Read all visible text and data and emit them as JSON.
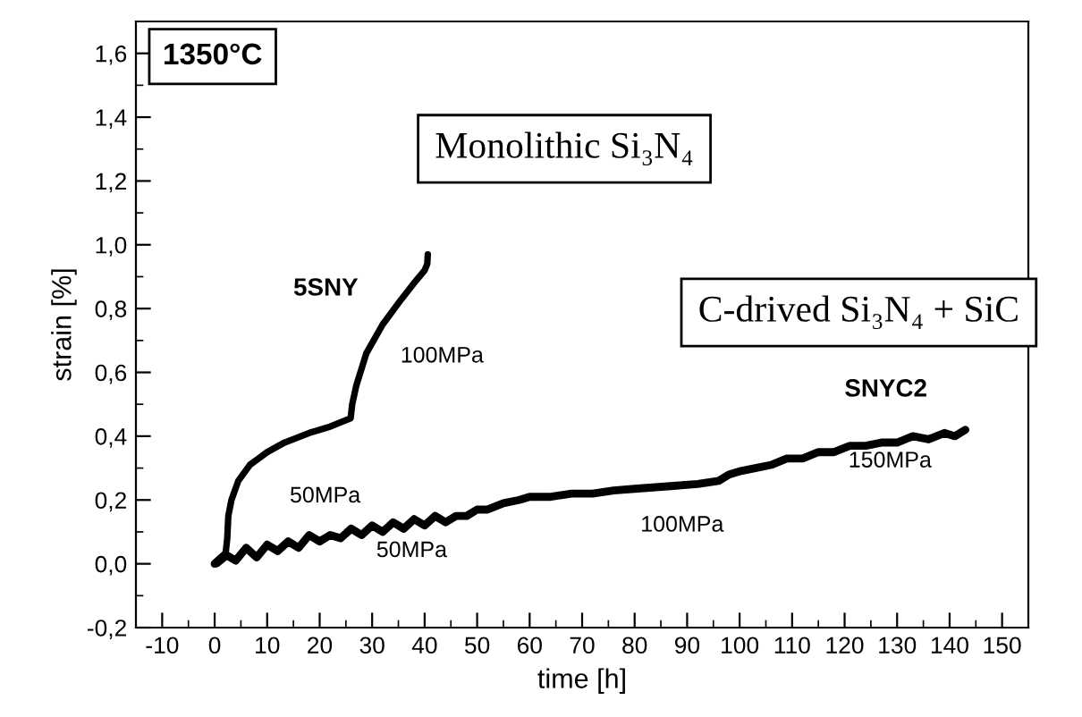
{
  "chart_data": {
    "type": "line",
    "xlabel": "time [h]",
    "ylabel": "strain [%]",
    "xlim": [
      -15,
      155
    ],
    "ylim": [
      -0.2,
      1.7
    ],
    "xticks": [
      -10,
      0,
      10,
      20,
      30,
      40,
      50,
      60,
      70,
      80,
      90,
      100,
      110,
      120,
      130,
      140,
      150
    ],
    "yticks": [
      {
        "value": -0.2,
        "label": "-0,2"
      },
      {
        "value": 0.0,
        "label": "0,0"
      },
      {
        "value": 0.2,
        "label": "0,2"
      },
      {
        "value": 0.4,
        "label": "0,4"
      },
      {
        "value": 0.6,
        "label": "0,6"
      },
      {
        "value": 0.8,
        "label": "0,8"
      },
      {
        "value": 1.0,
        "label": "1,0"
      },
      {
        "value": 1.2,
        "label": "1,2"
      },
      {
        "value": 1.4,
        "label": "1,4"
      },
      {
        "value": 1.6,
        "label": "1,6"
      }
    ],
    "grid": false,
    "legend": false,
    "marker": "none",
    "line_style": "solid",
    "series": [
      {
        "name": "5SNY",
        "color": "#000000",
        "x": [
          0.5,
          2.0,
          2.4,
          2.6,
          3.2,
          4.5,
          6.7,
          10,
          13.3,
          18,
          22,
          25.9,
          26.2,
          27,
          28.9,
          32,
          35.6,
          38,
          40,
          40.5,
          40.6
        ],
        "values": [
          0.0,
          0.02,
          0.08,
          0.15,
          0.2,
          0.26,
          0.31,
          0.35,
          0.38,
          0.41,
          0.43,
          0.456,
          0.5,
          0.56,
          0.66,
          0.75,
          0.83,
          0.88,
          0.92,
          0.94,
          0.97
        ]
      },
      {
        "name": "SNYC2",
        "color": "#000000",
        "x": [
          0,
          2,
          4,
          6,
          8,
          10,
          12,
          14,
          16,
          18,
          20,
          22,
          24,
          26,
          28,
          30,
          32,
          34,
          36,
          38,
          40,
          42,
          44,
          46,
          48,
          50,
          52,
          55,
          58,
          60,
          64,
          68,
          72,
          76,
          80,
          84,
          88,
          92,
          94,
          96,
          98,
          100,
          103,
          106,
          109,
          112,
          115,
          118,
          121,
          124,
          127,
          130,
          133,
          136,
          139,
          141,
          143
        ],
        "values": [
          0.0,
          0.03,
          0.01,
          0.05,
          0.02,
          0.06,
          0.04,
          0.07,
          0.05,
          0.09,
          0.07,
          0.09,
          0.08,
          0.11,
          0.09,
          0.12,
          0.1,
          0.13,
          0.11,
          0.14,
          0.12,
          0.15,
          0.13,
          0.15,
          0.15,
          0.17,
          0.17,
          0.19,
          0.2,
          0.21,
          0.21,
          0.22,
          0.22,
          0.23,
          0.235,
          0.24,
          0.245,
          0.25,
          0.255,
          0.26,
          0.28,
          0.29,
          0.3,
          0.31,
          0.33,
          0.33,
          0.35,
          0.35,
          0.37,
          0.37,
          0.38,
          0.38,
          0.4,
          0.39,
          0.41,
          0.4,
          0.42
        ]
      }
    ],
    "annotations": [
      "1350°C",
      "Monolithic Si₃N₄",
      "C-drived Si₃N₄ + SiC",
      "50MPa",
      "100MPa",
      "50MPa",
      "100MPa",
      "150MPa"
    ]
  }
}
